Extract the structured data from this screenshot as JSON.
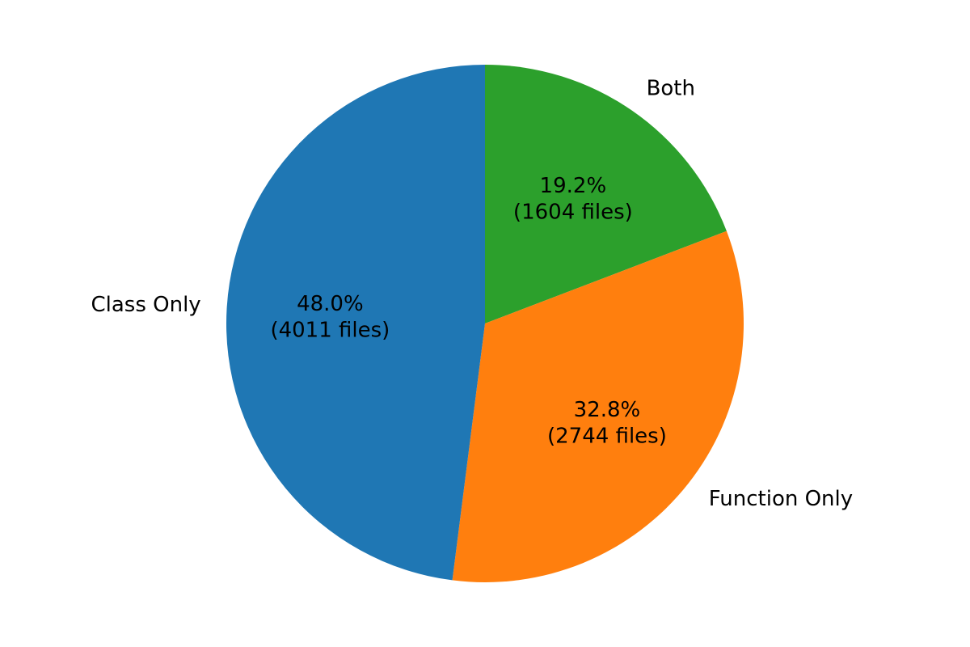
{
  "chart_data": {
    "type": "pie",
    "title": "",
    "start_angle_deg": 90,
    "direction": "clockwise",
    "slices": [
      {
        "label": "Both",
        "value": 1604,
        "percent_label": "19.2%",
        "count_label": "(1604 files)",
        "color": "#2ca02c"
      },
      {
        "label": "Function Only",
        "value": 2744,
        "percent_label": "32.8%",
        "count_label": "(2744 files)",
        "color": "#ff7f0e"
      },
      {
        "label": "Class Only",
        "value": 4011,
        "percent_label": "48.0%",
        "count_label": "(4011 files)",
        "color": "#1f77b4"
      }
    ]
  }
}
